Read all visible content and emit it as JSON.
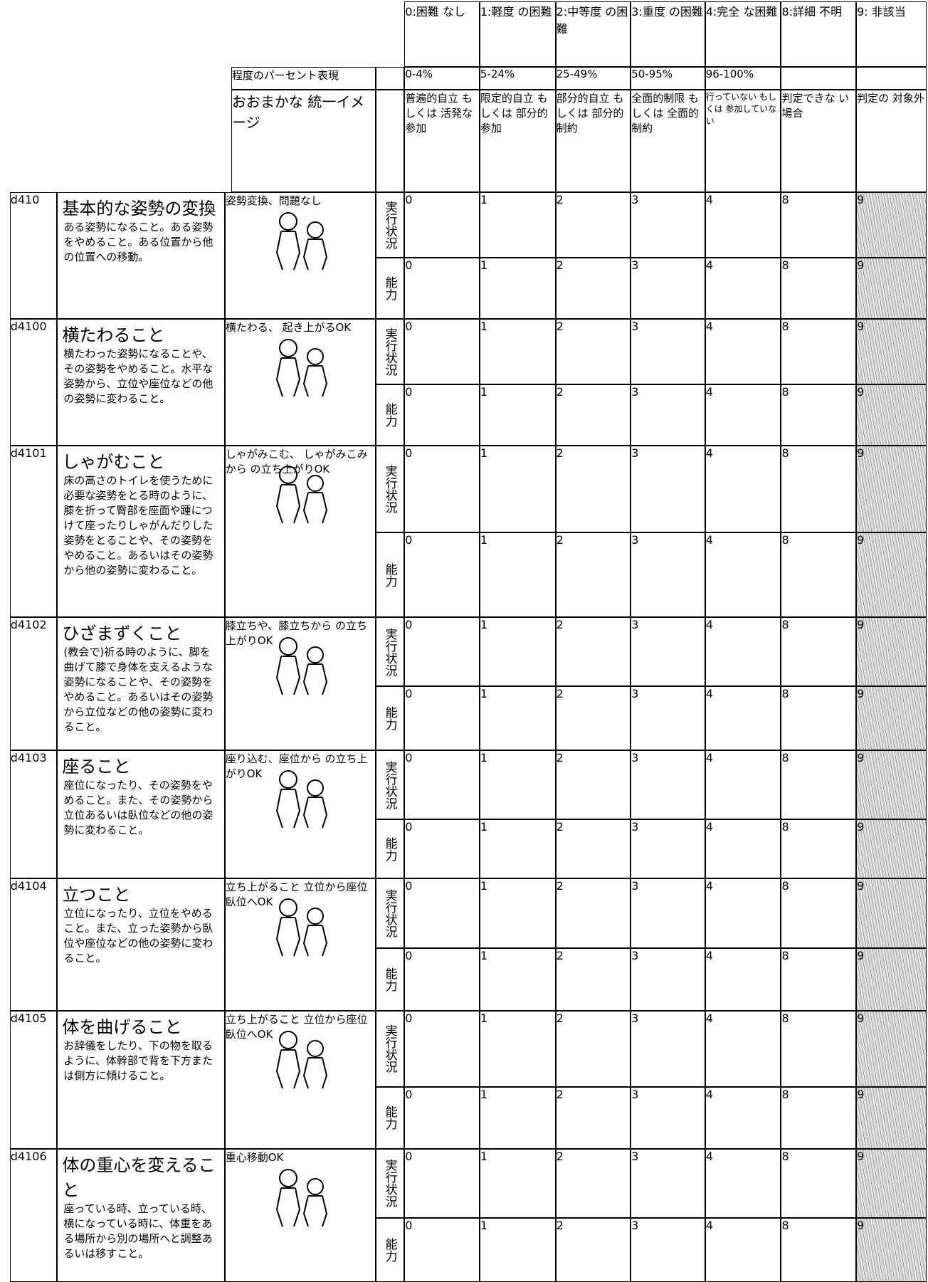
{
  "header": {
    "levels": [
      "0:困難\nなし",
      "1:軽度\nの困難",
      "2:中等度\nの困難",
      "3:重度\nの困難",
      "4:完全\nな困難",
      "8:詳細\n不明",
      "9:\n非該当"
    ],
    "percent_label": "程度のパーセント表現",
    "percents": [
      "0-4%",
      "5-24%",
      "25-49%",
      "50-95%",
      "96-100%"
    ],
    "image_label": "おおまかな\n統一イメージ",
    "descriptions": [
      "普遍的自立\nもしくは\n活発な参加",
      "限定的自立\nもしくは\n部分的参加",
      "部分的自立\nもしくは\n部分的制約",
      "全面的制限\nもしくは\n全面的制約",
      "行っていない\nもしくは\n参加していない",
      "判定できな\nい場合",
      "判定の\n対象外"
    ]
  },
  "items": [
    {
      "code": "d410",
      "title": "基本的な姿勢の変換",
      "description": "ある姿勢になること。ある姿勢をやめること。ある位置から他の位置への移動。",
      "caption": "姿勢変換、問題なし",
      "rows": [
        {
          "label": "実行状況",
          "scores": [
            "0",
            "1",
            "2",
            "3",
            "4",
            "8",
            "9"
          ]
        },
        {
          "label": "能力",
          "scores": [
            "0",
            "1",
            "2",
            "3",
            "4",
            "8",
            "9"
          ]
        }
      ]
    },
    {
      "code": "d4100",
      "title": "横たわること",
      "description": "横たわった姿勢になることや、その姿勢をやめること。水平な姿勢から、立位や座位などの他の姿勢に変わること。",
      "caption": "横たわる、\n起き上がるOK",
      "rows": [
        {
          "label": "実行状況",
          "scores": [
            "0",
            "1",
            "2",
            "3",
            "4",
            "8",
            "9"
          ]
        },
        {
          "label": "能力",
          "scores": [
            "0",
            "1",
            "2",
            "3",
            "4",
            "8",
            "9"
          ]
        }
      ]
    },
    {
      "code": "d4101",
      "title": "しゃがむこと",
      "description": "床の高さのトイレを使うために必要な姿勢をとる時のように、膝を折って臀部を座面や踵につけて座ったりしゃがんだりした姿勢をとることや、その姿勢をやめること。あるいはその姿勢から他の姿勢に変わること。",
      "caption": "しゃがみこむ、\nしゃがみこみから\nの立ち上がりOK",
      "rows": [
        {
          "label": "実行状況",
          "scores": [
            "0",
            "1",
            "2",
            "3",
            "4",
            "8",
            "9"
          ]
        },
        {
          "label": "能力",
          "scores": [
            "0",
            "1",
            "2",
            "3",
            "4",
            "8",
            "9"
          ]
        }
      ]
    },
    {
      "code": "d4102",
      "title": "ひざまずくこと",
      "description": "(教会で)祈る時のように、脚を曲げて膝で身体を支えるような姿勢になることや、その姿勢をやめること。あるいはその姿勢から立位などの他の姿勢に変わること。",
      "caption": "膝立ちや、膝立ちから\nの立ち上がりOK",
      "rows": [
        {
          "label": "実行状況",
          "scores": [
            "0",
            "1",
            "2",
            "3",
            "4",
            "8",
            "9"
          ]
        },
        {
          "label": "能力",
          "scores": [
            "0",
            "1",
            "2",
            "3",
            "4",
            "8",
            "9"
          ]
        }
      ]
    },
    {
      "code": "d4103",
      "title": "座ること",
      "description": "座位になったり、その姿勢をやめること。また、その姿勢から立位あるいは臥位などの他の姿勢に変わること。",
      "caption": "座り込む、座位から\nの立ち上がりOK",
      "rows": [
        {
          "label": "実行状況",
          "scores": [
            "0",
            "1",
            "2",
            "3",
            "4",
            "8",
            "9"
          ]
        },
        {
          "label": "能力",
          "scores": [
            "0",
            "1",
            "2",
            "3",
            "4",
            "8",
            "9"
          ]
        }
      ]
    },
    {
      "code": "d4104",
      "title": "立つこと",
      "description": "立位になったり、立位をやめること。また、立った姿勢から臥位や座位などの他の姿勢に変わること。",
      "caption": "立ち上がること\n立位から座位\n臥位へOK",
      "rows": [
        {
          "label": "実行状況",
          "scores": [
            "0",
            "1",
            "2",
            "3",
            "4",
            "8",
            "9"
          ]
        },
        {
          "label": "能力",
          "scores": [
            "0",
            "1",
            "2",
            "3",
            "4",
            "8",
            "9"
          ]
        }
      ]
    },
    {
      "code": "d4105",
      "title": "体を曲げること",
      "description": "お辞儀をしたり、下の物を取るように、体幹部で背を下方または側方に傾けること。",
      "caption": "立ち上がること\n立位から座位\n臥位へOK",
      "rows": [
        {
          "label": "実行状況",
          "scores": [
            "0",
            "1",
            "2",
            "3",
            "4",
            "8",
            "9"
          ]
        },
        {
          "label": "能力",
          "scores": [
            "0",
            "1",
            "2",
            "3",
            "4",
            "8",
            "9"
          ]
        }
      ]
    },
    {
      "code": "d4106",
      "title": "体の重心を変えること",
      "description": "座っている時、立っている時、横になっている時に、体重をある場所から別の場所へと調整あるいは移すこと。",
      "caption": "重心移動OK",
      "rows": [
        {
          "label": "実行状況",
          "scores": [
            "0",
            "1",
            "2",
            "3",
            "4",
            "8",
            "9"
          ]
        },
        {
          "label": "能力",
          "scores": [
            "0",
            "1",
            "2",
            "3",
            "4",
            "8",
            "9"
          ]
        }
      ]
    }
  ]
}
